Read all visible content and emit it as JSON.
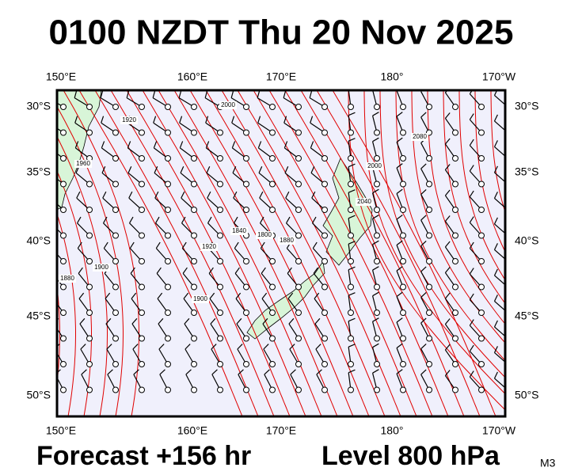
{
  "title": "0100 NZDT Thu 20 Nov 2025",
  "map": {
    "lon_labels": [
      "150°E",
      "160°E",
      "170°E",
      "180°",
      "170°W"
    ],
    "lat_labels": [
      "30°S",
      "35°S",
      "40°S",
      "45°S",
      "50°S"
    ],
    "contour_labels": [
      "1920",
      "1960",
      "2000",
      "2000",
      "2080",
      "2040",
      "1880",
      "1900",
      "1920",
      "1840",
      "1800",
      "1880",
      "1900"
    ]
  },
  "footer": {
    "forecast": "Forecast +156 hr",
    "level": "Level 800 hPa",
    "code": "M3"
  }
}
